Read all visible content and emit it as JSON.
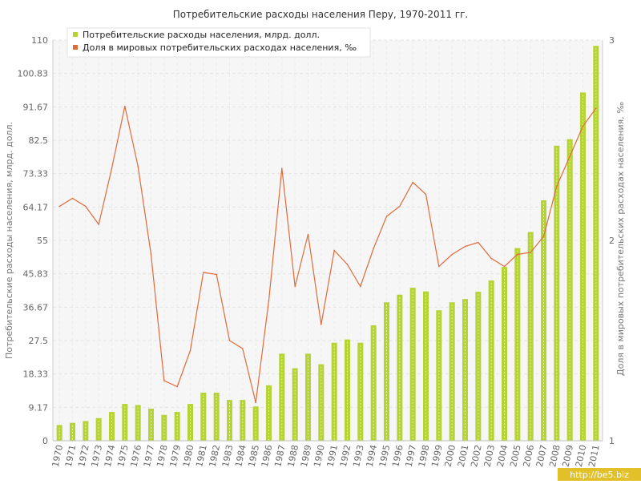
{
  "chart_data": {
    "type": "bar",
    "title": "Потребительские расходы населения Перу, 1970-2011 гг.",
    "ylabel_left": "Потребительские расходы населения, млрд. долл.",
    "ylabel_right": "Доля в мировых потребительских расходах населения, ‰",
    "categories": [
      "1970",
      "1971",
      "1972",
      "1973",
      "1974",
      "1975",
      "1976",
      "1977",
      "1978",
      "1979",
      "1980",
      "1981",
      "1982",
      "1983",
      "1984",
      "1985",
      "1986",
      "1987",
      "1988",
      "1989",
      "1990",
      "1991",
      "1992",
      "1993",
      "1994",
      "1995",
      "1996",
      "1997",
      "1998",
      "1999",
      "2000",
      "2001",
      "2002",
      "2003",
      "2004",
      "2005",
      "2006",
      "2007",
      "2008",
      "2009",
      "2010",
      "2011"
    ],
    "y_left": {
      "ticks": [
        "0",
        "9.17",
        "18.33",
        "27.5",
        "36.67",
        "45.83",
        "55",
        "64.17",
        "73.33",
        "82.5",
        "91.67",
        "100.83",
        "110"
      ],
      "lim": [
        0,
        110
      ]
    },
    "y_right": {
      "ticks": [
        "1",
        "2",
        "3"
      ],
      "lim": [
        1,
        3
      ]
    },
    "grid": true,
    "legend_position": "top-left",
    "series": [
      {
        "name": "Потребительские расходы населения, млрд. долл.",
        "kind": "bar",
        "axis": "left",
        "color": "#b5d334",
        "values": [
          4.3,
          4.9,
          5.4,
          6.2,
          7.9,
          10.1,
          9.8,
          8.8,
          7.1,
          7.9,
          10.1,
          13.2,
          13.2,
          11.2,
          11.2,
          9.4,
          15.2,
          23.9,
          19.9,
          23.9,
          21.0,
          26.9,
          27.8,
          26.9,
          31.7,
          38.0,
          40.1,
          42.0,
          41.0,
          35.8,
          38.0,
          38.9,
          40.9,
          44.0,
          47.7,
          52.9,
          57.3,
          66.0,
          81.0,
          82.8,
          95.6,
          108.4
        ]
      },
      {
        "name": "Доля в мировых потребительских расходах населения, ‰",
        "kind": "line",
        "axis": "right",
        "color": "#e06a3a",
        "values": [
          2.17,
          2.21,
          2.17,
          2.08,
          2.36,
          2.67,
          2.37,
          1.93,
          1.3,
          1.27,
          1.45,
          1.84,
          1.83,
          1.5,
          1.46,
          1.19,
          1.7,
          2.36,
          1.77,
          2.03,
          1.58,
          1.95,
          1.88,
          1.77,
          1.96,
          2.12,
          2.17,
          2.29,
          2.23,
          1.87,
          1.93,
          1.97,
          1.99,
          1.91,
          1.87,
          1.93,
          1.94,
          2.02,
          2.27,
          2.42,
          2.57,
          2.66
        ]
      }
    ]
  },
  "watermark": "http://be5.biz"
}
